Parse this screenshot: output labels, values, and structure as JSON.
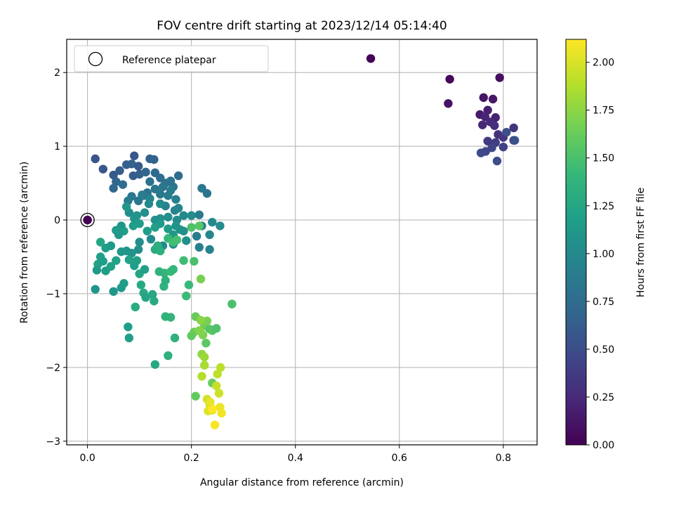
{
  "chart_data": {
    "type": "scatter",
    "title": "FOV centre drift starting at 2023/12/14 05:14:40",
    "xlabel": "Angular distance from reference (arcmin)",
    "ylabel": "Rotation from reference (arcmin)",
    "xlim": [
      -0.04,
      0.865
    ],
    "ylim": [
      -3.05,
      2.45
    ],
    "xticks": [
      0.0,
      0.2,
      0.4,
      0.6,
      0.8
    ],
    "xtick_labels": [
      "0.0",
      "0.2",
      "0.4",
      "0.6",
      "0.8"
    ],
    "yticks": [
      -3,
      -2,
      -1,
      0,
      1,
      2
    ],
    "ytick_labels": [
      "−3",
      "−2",
      "−1",
      "0",
      "1",
      "2"
    ],
    "grid": true,
    "legend": {
      "location": "upper-left",
      "entries": [
        "Reference platepar"
      ]
    },
    "colorbar": {
      "label": "Hours from first FF file",
      "colormap": "viridis",
      "range": [
        0.0,
        2.12
      ],
      "ticks": [
        0.0,
        0.25,
        0.5,
        0.75,
        1.0,
        1.25,
        1.5,
        1.75,
        2.0
      ],
      "tick_labels": [
        "0.00",
        "0.25",
        "0.50",
        "0.75",
        "1.00",
        "1.25",
        "1.50",
        "1.75",
        "2.00"
      ]
    },
    "reference_point": {
      "x": 0.0,
      "y": 0.0,
      "color_value": 0.0
    },
    "series": [
      {
        "points": [
          [
            0.545,
            2.19,
            0.02
          ],
          [
            0.697,
            1.91,
            0.05
          ],
          [
            0.793,
            1.93,
            0.08
          ],
          [
            0.694,
            1.58,
            0.1
          ],
          [
            0.762,
            1.66,
            0.12
          ],
          [
            0.78,
            1.64,
            0.14
          ],
          [
            0.755,
            1.43,
            0.16
          ],
          [
            0.77,
            1.49,
            0.18
          ],
          [
            0.785,
            1.39,
            0.2
          ],
          [
            0.765,
            1.4,
            0.22
          ],
          [
            0.76,
            1.29,
            0.24
          ],
          [
            0.775,
            1.33,
            0.26
          ],
          [
            0.783,
            1.28,
            0.28
          ],
          [
            0.79,
            1.16,
            0.3
          ],
          [
            0.82,
            1.25,
            0.32
          ],
          [
            0.8,
            1.12,
            0.34
          ],
          [
            0.77,
            1.07,
            0.36
          ],
          [
            0.785,
            1.05,
            0.38
          ],
          [
            0.82,
            1.08,
            0.4
          ],
          [
            0.8,
            0.99,
            0.42
          ],
          [
            0.778,
            0.98,
            0.44
          ],
          [
            0.766,
            0.93,
            0.46
          ],
          [
            0.757,
            0.91,
            0.48
          ],
          [
            0.788,
            0.8,
            0.5
          ],
          [
            0.806,
            1.19,
            0.52
          ],
          [
            0.822,
            1.08,
            0.54
          ],
          [
            0.015,
            0.83,
            0.56
          ],
          [
            0.03,
            0.69,
            0.58
          ],
          [
            0.05,
            0.61,
            0.6
          ],
          [
            0.062,
            0.67,
            0.62
          ],
          [
            0.075,
            0.75,
            0.64
          ],
          [
            0.085,
            0.76,
            0.66
          ],
          [
            0.09,
            0.87,
            0.58
          ],
          [
            0.098,
            0.73,
            0.6
          ],
          [
            0.088,
            0.6,
            0.62
          ],
          [
            0.1,
            0.62,
            0.64
          ],
          [
            0.12,
            0.83,
            0.66
          ],
          [
            0.128,
            0.82,
            0.68
          ],
          [
            0.055,
            0.52,
            0.7
          ],
          [
            0.05,
            0.43,
            0.72
          ],
          [
            0.068,
            0.48,
            0.74
          ],
          [
            0.112,
            0.65,
            0.7
          ],
          [
            0.13,
            0.64,
            0.72
          ],
          [
            0.14,
            0.57,
            0.76
          ],
          [
            0.15,
            0.5,
            0.78
          ],
          [
            0.16,
            0.53,
            0.8
          ],
          [
            0.175,
            0.6,
            0.74
          ],
          [
            0.165,
            0.45,
            0.82
          ],
          [
            0.145,
            0.45,
            0.84
          ],
          [
            0.13,
            0.42,
            0.85
          ],
          [
            0.12,
            0.52,
            0.78
          ],
          [
            0.108,
            0.33,
            0.86
          ],
          [
            0.115,
            0.37,
            0.8
          ],
          [
            0.098,
            0.26,
            0.82
          ],
          [
            0.085,
            0.32,
            0.84
          ],
          [
            0.078,
            0.26,
            0.88
          ],
          [
            0.105,
            0.34,
            0.9
          ],
          [
            0.14,
            0.35,
            0.86
          ],
          [
            0.155,
            0.33,
            0.88
          ],
          [
            0.16,
            0.4,
            0.9
          ],
          [
            0.17,
            0.28,
            0.92
          ],
          [
            0.15,
            0.19,
            0.94
          ],
          [
            0.168,
            0.13,
            0.96
          ],
          [
            0.175,
            0.16,
            0.98
          ],
          [
            0.185,
            0.06,
            1.0
          ],
          [
            0.172,
            0.0,
            1.02
          ],
          [
            0.155,
            0.04,
            1.04
          ],
          [
            0.14,
            0.02,
            1.06
          ],
          [
            0.13,
            0.0,
            1.08
          ],
          [
            0.12,
            0.29,
            0.96
          ],
          [
            0.118,
            0.22,
            1.0
          ],
          [
            0.14,
            0.22,
            1.02
          ],
          [
            0.11,
            0.1,
            1.06
          ],
          [
            0.095,
            0.06,
            1.08
          ],
          [
            0.08,
            0.1,
            1.04
          ],
          [
            0.09,
            0.02,
            1.1
          ],
          [
            0.075,
            0.18,
            1.12
          ],
          [
            0.065,
            -0.08,
            1.1
          ],
          [
            0.06,
            -0.2,
            1.12
          ],
          [
            0.055,
            -0.14,
            1.14
          ],
          [
            0.07,
            -0.15,
            1.16
          ],
          [
            0.088,
            -0.08,
            1.18
          ],
          [
            0.1,
            -0.05,
            1.16
          ],
          [
            0.115,
            -0.15,
            1.18
          ],
          [
            0.13,
            -0.1,
            1.2
          ],
          [
            0.14,
            -0.05,
            1.14
          ],
          [
            0.155,
            -0.12,
            1.16
          ],
          [
            0.165,
            -0.2,
            1.12
          ],
          [
            0.17,
            -0.08,
            1.1
          ],
          [
            0.178,
            -0.13,
            1.08
          ],
          [
            0.185,
            -0.15,
            1.06
          ],
          [
            0.2,
            0.06,
            1.04
          ],
          [
            0.215,
            0.07,
            0.88
          ],
          [
            0.22,
            0.43,
            0.84
          ],
          [
            0.23,
            0.36,
            0.82
          ],
          [
            0.21,
            -0.22,
            0.9
          ],
          [
            0.215,
            -0.37,
            0.92
          ],
          [
            0.235,
            -0.4,
            0.94
          ],
          [
            0.22,
            -0.08,
            0.96
          ],
          [
            0.235,
            -0.2,
            0.98
          ],
          [
            0.24,
            -0.03,
            1.0
          ],
          [
            0.255,
            -0.08,
            1.02
          ],
          [
            0.165,
            -0.33,
            1.04
          ],
          [
            0.19,
            -0.28,
            1.06
          ],
          [
            0.145,
            -0.35,
            1.0
          ],
          [
            0.122,
            -0.26,
            1.02
          ],
          [
            0.1,
            -0.3,
            1.04
          ],
          [
            0.098,
            -0.4,
            1.06
          ],
          [
            0.085,
            -0.45,
            1.08
          ],
          [
            0.075,
            -0.42,
            1.1
          ],
          [
            0.065,
            -0.43,
            1.12
          ],
          [
            0.045,
            -0.35,
            1.14
          ],
          [
            0.035,
            -0.38,
            1.16
          ],
          [
            0.025,
            -0.5,
            1.2
          ],
          [
            0.02,
            -0.6,
            1.22
          ],
          [
            0.03,
            -0.56,
            1.18
          ],
          [
            0.035,
            -0.69,
            1.16
          ],
          [
            0.045,
            -0.63,
            1.2
          ],
          [
            0.055,
            -0.55,
            1.22
          ],
          [
            0.025,
            -0.3,
            1.24
          ],
          [
            0.018,
            -0.68,
            1.14
          ],
          [
            0.015,
            -0.94,
            1.1
          ],
          [
            0.05,
            -0.97,
            1.12
          ],
          [
            0.065,
            -0.92,
            1.14
          ],
          [
            0.07,
            -0.86,
            1.16
          ],
          [
            0.09,
            -0.62,
            1.18
          ],
          [
            0.095,
            -0.55,
            1.2
          ],
          [
            0.08,
            -0.54,
            1.22
          ],
          [
            0.1,
            -0.73,
            1.24
          ],
          [
            0.11,
            -0.67,
            1.2
          ],
          [
            0.103,
            -0.88,
            1.26
          ],
          [
            0.108,
            -0.99,
            1.28
          ],
          [
            0.112,
            -1.05,
            1.24
          ],
          [
            0.125,
            -1.01,
            1.26
          ],
          [
            0.128,
            -1.1,
            1.28
          ],
          [
            0.092,
            -1.18,
            1.3
          ],
          [
            0.078,
            -1.45,
            1.18
          ],
          [
            0.08,
            -1.6,
            1.2
          ],
          [
            0.13,
            -1.96,
            1.26
          ],
          [
            0.13,
            -0.4,
            1.3
          ],
          [
            0.135,
            -0.35,
            1.32
          ],
          [
            0.14,
            -0.42,
            1.34
          ],
          [
            0.138,
            -0.7,
            1.36
          ],
          [
            0.148,
            -0.72,
            1.38
          ],
          [
            0.147,
            -0.9,
            1.36
          ],
          [
            0.15,
            -0.82,
            1.34
          ],
          [
            0.16,
            -0.7,
            1.44
          ],
          [
            0.165,
            -0.67,
            1.4
          ],
          [
            0.155,
            -0.25,
            1.42
          ],
          [
            0.165,
            -0.3,
            1.46
          ],
          [
            0.172,
            -0.27,
            1.48
          ],
          [
            0.2,
            -0.1,
            1.52
          ],
          [
            0.215,
            -0.08,
            1.56
          ],
          [
            0.195,
            -0.88,
            1.42
          ],
          [
            0.185,
            -0.55,
            1.46
          ],
          [
            0.205,
            -0.56,
            1.5
          ],
          [
            0.19,
            -1.03,
            1.44
          ],
          [
            0.16,
            -1.32,
            1.4
          ],
          [
            0.15,
            -1.31,
            1.38
          ],
          [
            0.168,
            -1.6,
            1.36
          ],
          [
            0.155,
            -1.84,
            1.34
          ],
          [
            0.208,
            -1.31,
            1.62
          ],
          [
            0.205,
            -1.52,
            1.64
          ],
          [
            0.2,
            -1.57,
            1.6
          ],
          [
            0.225,
            -1.44,
            1.66
          ],
          [
            0.23,
            -1.37,
            1.68
          ],
          [
            0.222,
            -1.56,
            1.7
          ],
          [
            0.215,
            -1.5,
            1.72
          ],
          [
            0.228,
            -1.67,
            1.58
          ],
          [
            0.235,
            -1.48,
            1.54
          ],
          [
            0.24,
            -1.5,
            1.56
          ],
          [
            0.248,
            -1.47,
            1.52
          ],
          [
            0.218,
            -1.36,
            1.74
          ],
          [
            0.218,
            -0.8,
            1.68
          ],
          [
            0.278,
            -1.14,
            1.5
          ],
          [
            0.22,
            -1.82,
            1.76
          ],
          [
            0.225,
            -1.86,
            1.8
          ],
          [
            0.225,
            -1.97,
            1.84
          ],
          [
            0.22,
            -2.12,
            1.88
          ],
          [
            0.208,
            -2.39,
            1.6
          ],
          [
            0.24,
            -2.21,
            1.62
          ],
          [
            0.256,
            -2.0,
            1.9
          ],
          [
            0.25,
            -2.09,
            1.92
          ],
          [
            0.248,
            -2.25,
            1.94
          ],
          [
            0.253,
            -2.35,
            1.96
          ],
          [
            0.23,
            -2.43,
            1.98
          ],
          [
            0.235,
            -2.5,
            2.0
          ],
          [
            0.232,
            -2.59,
            2.02
          ],
          [
            0.24,
            -2.58,
            2.04
          ],
          [
            0.255,
            -2.54,
            2.06
          ],
          [
            0.258,
            -2.62,
            2.08
          ],
          [
            0.245,
            -2.78,
            2.1
          ],
          [
            0.24,
            -2.56,
            2.12
          ],
          [
            0.236,
            -2.47,
            2.05
          ],
          [
            0.0,
            0.0,
            0.0
          ]
        ]
      }
    ]
  }
}
